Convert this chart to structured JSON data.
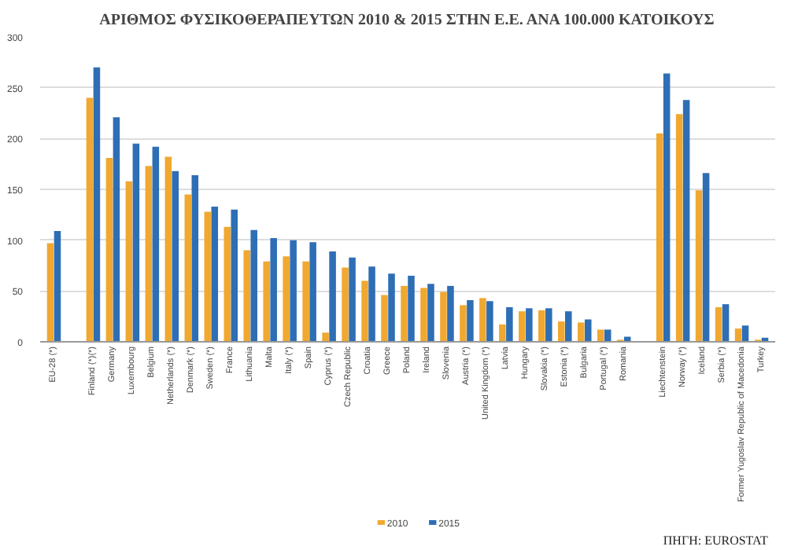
{
  "chart_data": {
    "type": "bar",
    "title": "ΑΡΙΘΜΟΣ ΦΥΣΙΚΟΘΕΡΑΠΕΥΤΩΝ 2010 & 2015 ΣΤΗΝ Ε.Ε. ΑΝΑ 100.000 ΚΑΤΟΙΚΟΥΣ",
    "categories": [
      "EU-28 (*)",
      null,
      "Finland (*)(*)",
      "Germany",
      "Luxembourg",
      "Belgium",
      "Netherlands (*)",
      "Denmark (*)",
      "Sweden (*)",
      "France",
      "Lithuania",
      "Malta",
      "Italy (*)",
      "Spain",
      "Cyprus (*)",
      "Czech Republic",
      "Croatia",
      "Greece",
      "Poland",
      "Ireland",
      "Slovenia",
      "Austria (*)",
      "United Kingdom (*)",
      "Latvia",
      "Hungary",
      "Slovakia (*)",
      "Estonia (*)",
      "Bulgaria",
      "Portugal (*)",
      "Romania",
      null,
      "Liechtenstein",
      "Norway (*)",
      "Iceland",
      "Serbia (*)",
      "Former Yugoslav Republic of Macedonia",
      "Turkey"
    ],
    "series": [
      {
        "name": "2010",
        "color": "#f0a830",
        "values": [
          97,
          null,
          240,
          181,
          158,
          173,
          182,
          145,
          128,
          113,
          90,
          79,
          84,
          79,
          9,
          73,
          60,
          46,
          55,
          53,
          49,
          36,
          43,
          17,
          30,
          31,
          20,
          19,
          12,
          2,
          null,
          205,
          224,
          149,
          34,
          13,
          2
        ]
      },
      {
        "name": "2015",
        "color": "#2e6eb5",
        "values": [
          109,
          null,
          270,
          221,
          195,
          192,
          168,
          164,
          133,
          130,
          110,
          102,
          100,
          98,
          89,
          83,
          74,
          67,
          65,
          57,
          55,
          41,
          40,
          34,
          33,
          33,
          30,
          22,
          12,
          5,
          null,
          264,
          238,
          166,
          37,
          16,
          4
        ]
      }
    ],
    "ylim": [
      0,
      300
    ],
    "yticks": [
      0,
      50,
      100,
      150,
      200,
      250,
      300
    ],
    "grid": "y",
    "legend": "bottom",
    "annotations": [
      "ΠΗΓΗ: EUROSTAT"
    ]
  }
}
